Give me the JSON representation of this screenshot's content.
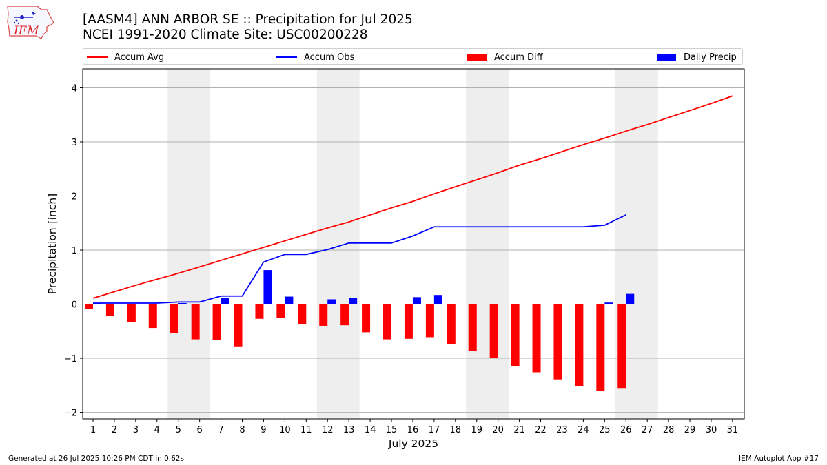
{
  "header": {
    "title": "[AASM4] ANN ARBOR SE :: Precipitation for Jul 2025",
    "subtitle": "NCEI 1991-2020 Climate Site: USC00200228",
    "logo_text": "IEM"
  },
  "footer": {
    "generated": "Generated at 26 Jul 2025 10:26 PM CDT in 0.62s",
    "app": "IEM Autoplot App #17"
  },
  "colors": {
    "accum_avg": "#ff0000",
    "accum_obs": "#0000ff",
    "accum_diff": "#ff0000",
    "daily_precip": "#0000ff",
    "weekend_shade": "#eeeeee",
    "grid": "#b0b0b0"
  },
  "chart_data": {
    "type": "bar",
    "xlabel": "July 2025",
    "ylabel": "Precipitation [inch]",
    "ylim": [
      -2.12,
      4.35
    ],
    "yticks": [
      -2,
      -1,
      0,
      1,
      2,
      3,
      4
    ],
    "ytick_labels": [
      "−2",
      "−1",
      "0",
      "1",
      "2",
      "3",
      "4"
    ],
    "grid": "horizontal",
    "legend_position": "top",
    "days": [
      1,
      2,
      3,
      4,
      5,
      6,
      7,
      8,
      9,
      10,
      11,
      12,
      13,
      14,
      15,
      16,
      17,
      18,
      19,
      20,
      21,
      22,
      23,
      24,
      25,
      26,
      27,
      28,
      29,
      30,
      31
    ],
    "weekends": [
      [
        5,
        6
      ],
      [
        12,
        13
      ],
      [
        19,
        20
      ],
      [
        26,
        27
      ]
    ],
    "series": [
      {
        "name": "Accum Avg",
        "kind": "line",
        "values": [
          0.11,
          0.23,
          0.35,
          0.46,
          0.57,
          0.69,
          0.81,
          0.93,
          1.05,
          1.17,
          1.29,
          1.41,
          1.52,
          1.65,
          1.78,
          1.9,
          2.04,
          2.17,
          2.3,
          2.43,
          2.57,
          2.69,
          2.82,
          2.95,
          3.07,
          3.2,
          3.32,
          3.45,
          3.58,
          3.71,
          3.85
        ]
      },
      {
        "name": "Accum Obs",
        "kind": "line",
        "values": [
          0.02,
          0.02,
          0.02,
          0.02,
          0.04,
          0.04,
          0.15,
          0.15,
          0.78,
          0.92,
          0.92,
          1.01,
          1.13,
          1.13,
          1.13,
          1.26,
          1.43,
          1.43,
          1.43,
          1.43,
          1.43,
          1.43,
          1.43,
          1.43,
          1.46,
          1.65
        ]
      },
      {
        "name": "Accum Diff",
        "kind": "bar",
        "values": [
          -0.09,
          -0.21,
          -0.33,
          -0.44,
          -0.53,
          -0.65,
          -0.66,
          -0.78,
          -0.27,
          -0.25,
          -0.37,
          -0.4,
          -0.39,
          -0.52,
          -0.65,
          -0.64,
          -0.61,
          -0.74,
          -0.87,
          -1.0,
          -1.14,
          -1.26,
          -1.39,
          -1.52,
          -1.61,
          -1.55
        ]
      },
      {
        "name": "Daily Precip",
        "kind": "bar",
        "values": [
          0.02,
          0,
          0,
          0,
          0.02,
          0,
          0.11,
          0,
          0.63,
          0.14,
          0,
          0.09,
          0.12,
          0,
          0,
          0.13,
          0.17,
          0,
          0,
          0,
          0,
          0,
          0,
          0,
          0.03,
          0.19
        ]
      }
    ]
  }
}
